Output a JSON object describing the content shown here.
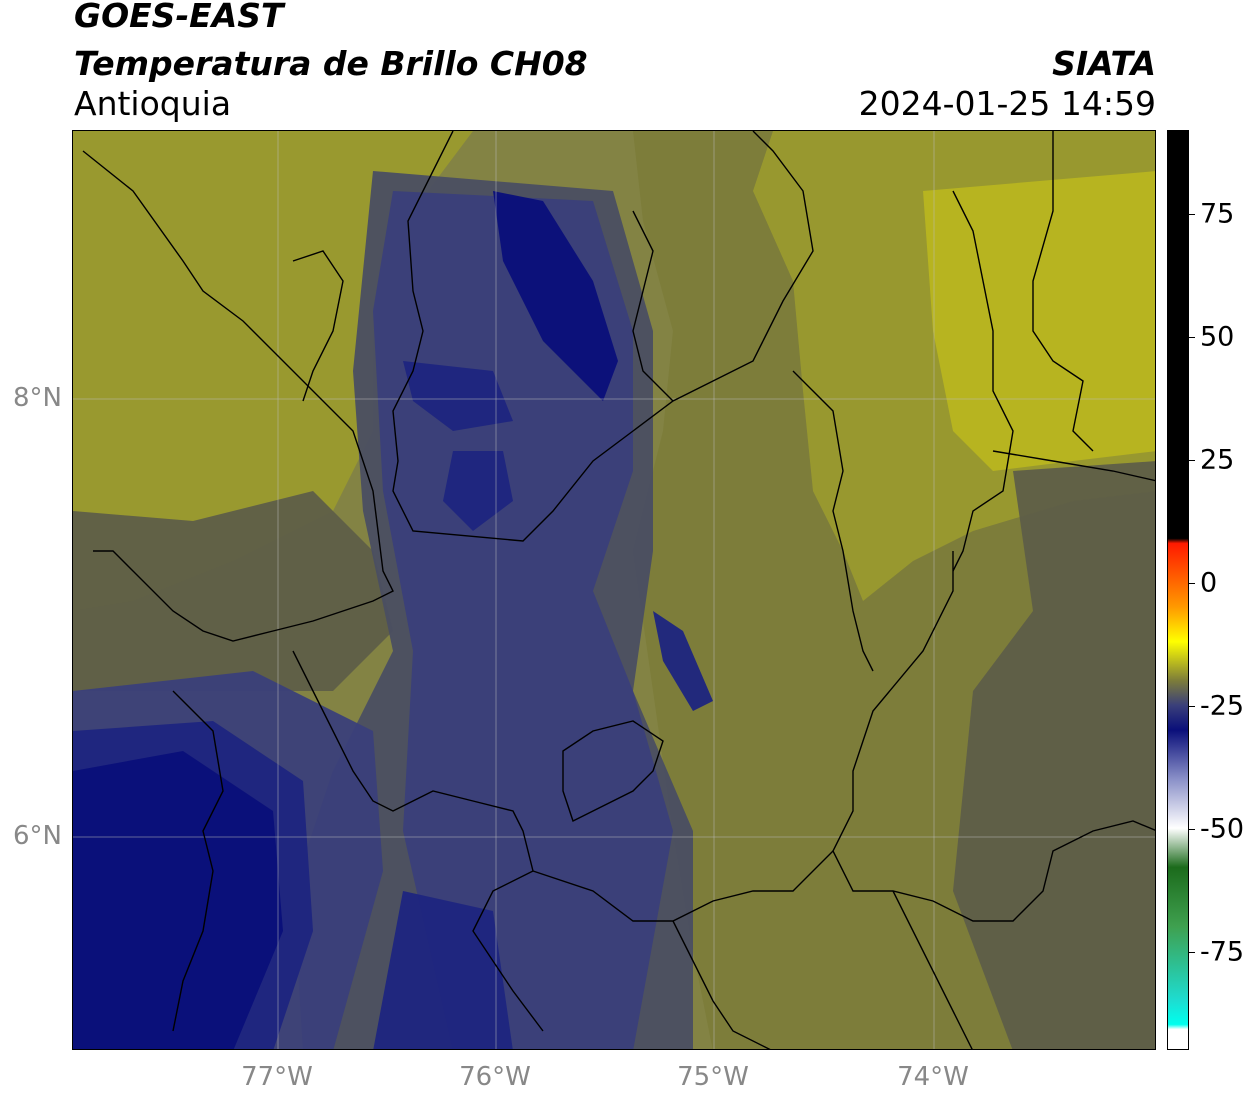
{
  "header": {
    "satellite": "GOES-EAST",
    "product": "Temperatura de Brillo CH08",
    "region": "Antioquia",
    "organization": "SIATA",
    "timestamp": "2024-01-25 14:59"
  },
  "map": {
    "longitude_labels": [
      "77°W",
      "76°W",
      "75°W",
      "74°W"
    ],
    "latitude_labels": [
      "8°N",
      "6°N"
    ],
    "palette": {
      "yellow_bright": "#b8b520",
      "yellow_olive": "#9a9a2e",
      "olive": "#7c7c3a",
      "gray_olive": "#5e5e48",
      "slate": "#4a4e62",
      "blue_gray": "#3a3f7a",
      "navy": "#1e2580",
      "deep_navy": "#0a0f7a"
    }
  },
  "colorbar": {
    "ticks": [
      "75",
      "50",
      "25",
      "0",
      "-25",
      "-50",
      "-75"
    ],
    "range": [
      -95,
      92
    ],
    "stops": [
      {
        "value": 92,
        "color": "#000000"
      },
      {
        "value": 9,
        "color": "#000000"
      },
      {
        "value": 8,
        "color": "#ff1a00"
      },
      {
        "value": -5,
        "color": "#ff9a00"
      },
      {
        "value": -12,
        "color": "#ffff00"
      },
      {
        "value": -20,
        "color": "#7c7c3a"
      },
      {
        "value": -25,
        "color": "#3a3f7a"
      },
      {
        "value": -30,
        "color": "#0a0f7a"
      },
      {
        "value": -40,
        "color": "#8a90c8"
      },
      {
        "value": -50,
        "color": "#ffffff"
      },
      {
        "value": -58,
        "color": "#1c6b1c"
      },
      {
        "value": -70,
        "color": "#3fa04f"
      },
      {
        "value": -85,
        "color": "#1edcd0"
      },
      {
        "value": -90,
        "color": "#00ffee"
      },
      {
        "value": -91,
        "color": "#ffffff"
      },
      {
        "value": -95,
        "color": "#ffffff"
      }
    ]
  }
}
